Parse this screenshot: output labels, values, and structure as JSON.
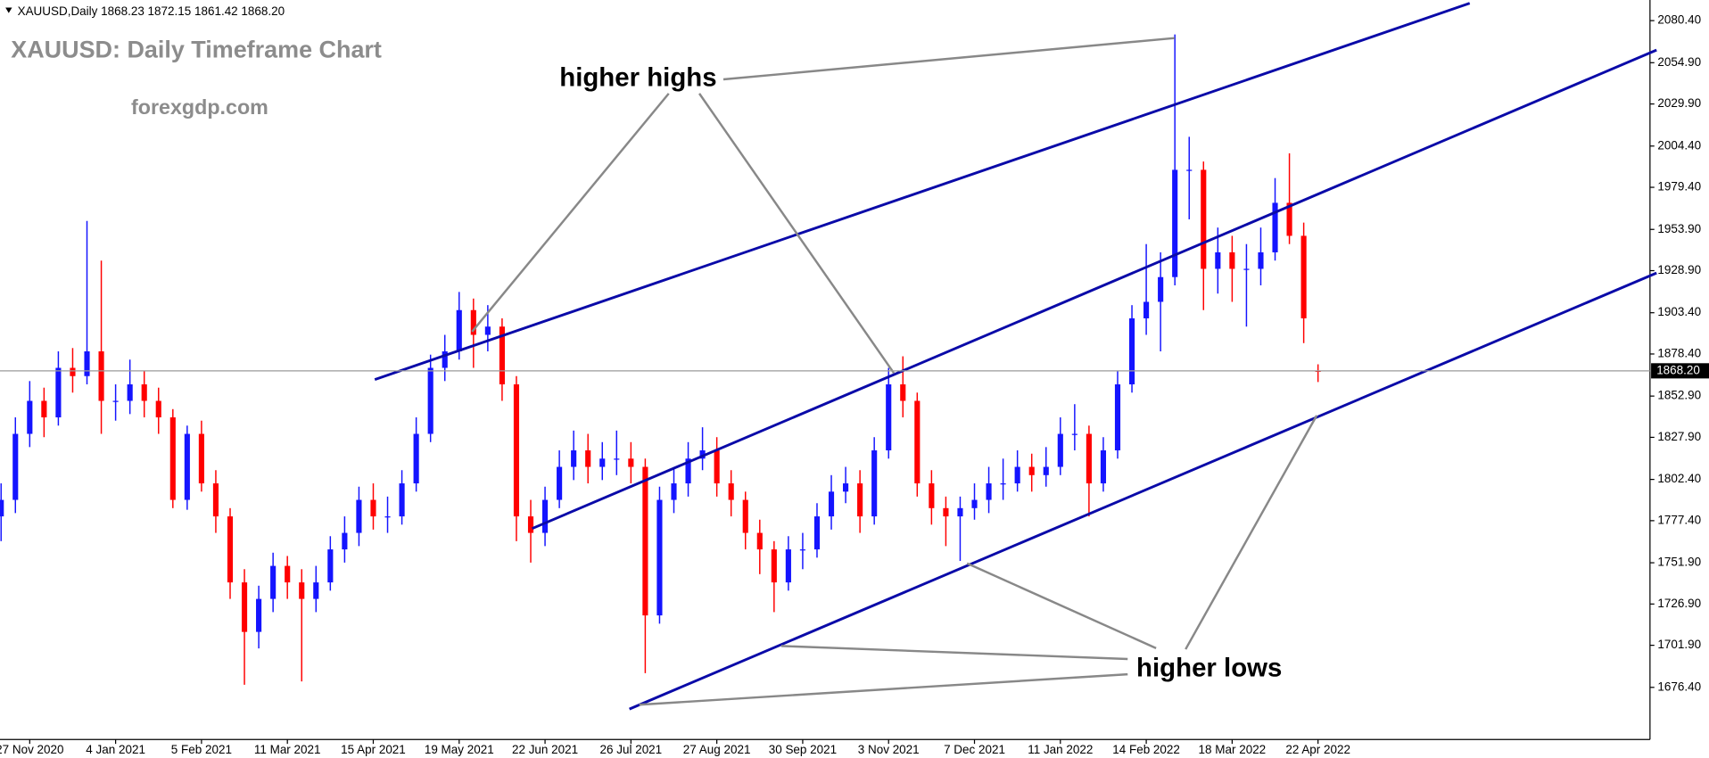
{
  "chart_data": {
    "type": "candlestick",
    "header": "XAUUSD,Daily  1868.23 1872.15 1861.42 1868.20",
    "title": "XAUUSD: Daily Timeframe Chart",
    "subtitle": "forexgdp.com",
    "annotations": [
      "higher highs",
      "higher lows"
    ],
    "current_price": {
      "value": 1868.2,
      "label": "1868.20"
    },
    "up_color": "#1414ff",
    "down_color": "#ff0000",
    "categories": [
      null,
      null,
      "27 Nov 2020",
      null,
      null,
      null,
      null,
      null,
      "4 Jan 2021",
      null,
      null,
      null,
      null,
      null,
      "5 Feb 2021",
      null,
      null,
      null,
      null,
      null,
      "11 Mar 2021",
      null,
      null,
      null,
      null,
      null,
      "15 Apr 2021",
      null,
      null,
      null,
      null,
      null,
      "19 May 2021",
      null,
      null,
      null,
      null,
      null,
      "22 Jun 2021",
      null,
      null,
      null,
      null,
      null,
      "26 Jul 2021",
      null,
      null,
      null,
      null,
      null,
      "27 Aug 2021",
      null,
      null,
      null,
      null,
      null,
      "30 Sep 2021",
      null,
      null,
      null,
      null,
      null,
      "3 Nov 2021",
      null,
      null,
      null,
      null,
      null,
      "7 Dec 2021",
      null,
      null,
      null,
      null,
      null,
      "11 Jan 2022",
      null,
      null,
      null,
      null,
      null,
      "14 Feb 2022",
      null,
      null,
      null,
      null,
      null,
      "18 Mar 2022",
      null,
      null,
      null,
      null,
      null,
      "22 Apr 2022"
    ],
    "open": [
      1780,
      1790,
      1830,
      1850,
      1840,
      1870,
      1865,
      1880,
      1850,
      1850,
      1860,
      1850,
      1840,
      1790,
      1830,
      1800,
      1780,
      1740,
      1710,
      1730,
      1750,
      1740,
      1730,
      1740,
      1760,
      1770,
      1790,
      1780,
      1780,
      1800,
      1830,
      1870,
      1880,
      1905,
      1890,
      1895,
      1860,
      1780,
      1770,
      1790,
      1810,
      1820,
      1810,
      1815,
      1815,
      1810,
      1720,
      1790,
      1800,
      1815,
      1820,
      1800,
      1790,
      1770,
      1760,
      1740,
      1760,
      1760,
      1780,
      1795,
      1800,
      1780,
      1820,
      1860,
      1850,
      1800,
      1785,
      1780,
      1785,
      1790,
      1800,
      1800,
      1810,
      1805,
      1810,
      1830,
      1830,
      1800,
      1820,
      1860,
      1900,
      1910,
      1925,
      1990,
      1990,
      1930,
      1940,
      1930,
      1930,
      1940,
      1970,
      1950,
      1868.23
    ],
    "high": [
      1800,
      1840,
      1862,
      1858,
      1880,
      1882,
      1959,
      1935,
      1860,
      1875,
      1868,
      1858,
      1845,
      1835,
      1838,
      1808,
      1785,
      1748,
      1738,
      1758,
      1756,
      1748,
      1750,
      1768,
      1780,
      1798,
      1800,
      1792,
      1808,
      1840,
      1878,
      1890,
      1916,
      1912,
      1908,
      1900,
      1865,
      1790,
      1798,
      1820,
      1832,
      1830,
      1825,
      1832,
      1825,
      1815,
      1798,
      1810,
      1825,
      1834,
      1828,
      1808,
      1795,
      1778,
      1765,
      1768,
      1770,
      1788,
      1805,
      1810,
      1808,
      1828,
      1870,
      1877,
      1855,
      1808,
      1792,
      1792,
      1800,
      1810,
      1815,
      1820,
      1818,
      1822,
      1840,
      1848,
      1835,
      1828,
      1868,
      1908,
      1945,
      1940,
      2072,
      2010,
      1995,
      1955,
      1950,
      1945,
      1955,
      1985,
      2000,
      1958,
      1872.15
    ],
    "low": [
      1765,
      1782,
      1822,
      1828,
      1835,
      1855,
      1860,
      1830,
      1838,
      1842,
      1840,
      1830,
      1785,
      1784,
      1795,
      1770,
      1730,
      1678,
      1700,
      1722,
      1730,
      1680,
      1722,
      1735,
      1752,
      1762,
      1772,
      1770,
      1775,
      1795,
      1825,
      1862,
      1875,
      1870,
      1880,
      1850,
      1765,
      1752,
      1762,
      1785,
      1802,
      1800,
      1802,
      1805,
      1800,
      1685,
      1715,
      1782,
      1792,
      1808,
      1792,
      1780,
      1760,
      1745,
      1722,
      1735,
      1748,
      1755,
      1772,
      1788,
      1770,
      1775,
      1815,
      1840,
      1792,
      1775,
      1762,
      1753,
      1778,
      1782,
      1790,
      1795,
      1795,
      1798,
      1805,
      1820,
      1780,
      1795,
      1815,
      1855,
      1890,
      1880,
      1920,
      1960,
      1905,
      1915,
      1910,
      1895,
      1920,
      1935,
      1945,
      1885,
      1861.42
    ],
    "close": [
      1790,
      1830,
      1850,
      1840,
      1870,
      1865,
      1880,
      1850,
      1850,
      1860,
      1850,
      1840,
      1790,
      1830,
      1800,
      1780,
      1740,
      1710,
      1730,
      1750,
      1740,
      1730,
      1740,
      1760,
      1770,
      1790,
      1780,
      1780,
      1800,
      1830,
      1870,
      1880,
      1905,
      1890,
      1895,
      1860,
      1780,
      1770,
      1790,
      1810,
      1820,
      1810,
      1815,
      1815,
      1810,
      1720,
      1790,
      1800,
      1815,
      1820,
      1800,
      1790,
      1770,
      1760,
      1740,
      1760,
      1760,
      1780,
      1795,
      1800,
      1780,
      1820,
      1860,
      1850,
      1800,
      1785,
      1780,
      1785,
      1790,
      1800,
      1800,
      1810,
      1805,
      1810,
      1830,
      1830,
      1800,
      1820,
      1860,
      1900,
      1910,
      1925,
      1990,
      1990,
      1930,
      1940,
      1930,
      1930,
      1940,
      1970,
      1950,
      1900,
      1868.2
    ],
    "ylim": [
      1644.8,
      2092.9
    ],
    "yticks": [
      {
        "value": 1676.4,
        "label": "1676.40"
      },
      {
        "value": 1701.9,
        "label": "1701.90"
      },
      {
        "value": 1726.9,
        "label": "1726.90"
      },
      {
        "value": 1751.9,
        "label": "1751.90"
      },
      {
        "value": 1777.4,
        "label": "1777.40"
      },
      {
        "value": 1802.4,
        "label": "1802.40"
      },
      {
        "value": 1827.9,
        "label": "1827.90"
      },
      {
        "value": 1852.9,
        "label": "1852.90"
      },
      {
        "value": 1878.4,
        "label": "1878.40"
      },
      {
        "value": 1903.4,
        "label": "1903.40"
      },
      {
        "value": 1928.9,
        "label": "1928.90"
      },
      {
        "value": 1953.9,
        "label": "1953.90"
      },
      {
        "value": 1979.4,
        "label": "1979.40"
      },
      {
        "value": 2004.4,
        "label": "2004.40"
      },
      {
        "value": 2029.9,
        "label": "2029.90"
      },
      {
        "value": 2054.9,
        "label": "2054.90"
      },
      {
        "value": 2080.4,
        "label": "2080.40"
      }
    ],
    "grid": false
  }
}
